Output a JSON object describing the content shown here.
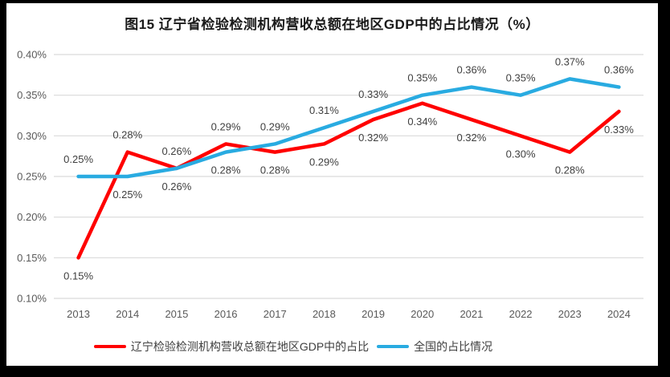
{
  "window": {
    "frame_color": "#000000",
    "canvas_color": "#FFFFFF"
  },
  "chart_data": {
    "type": "line",
    "title": "图15 辽宁省检验检测机构营收总额在地区GDP中的占比情况（%）",
    "categories": [
      "2013",
      "2014",
      "2015",
      "2016",
      "2017",
      "2018",
      "2019",
      "2020",
      "2021",
      "2022",
      "2023",
      "2024"
    ],
    "series": [
      {
        "name": "辽宁检验检测机构营收总额在地区GDP中的占比",
        "color": "#FF0000",
        "values": [
          0.15,
          0.28,
          0.26,
          0.29,
          0.28,
          0.29,
          0.32,
          0.34,
          0.32,
          0.3,
          0.28,
          0.33
        ]
      },
      {
        "name": "全国的占比情况",
        "color": "#29ABE1",
        "values": [
          0.25,
          0.25,
          0.26,
          0.28,
          0.29,
          0.31,
          0.33,
          0.35,
          0.36,
          0.35,
          0.37,
          0.36
        ]
      }
    ],
    "unit": "%",
    "ylim": [
      0.1,
      0.4
    ],
    "ytick_step": 0.05,
    "ytick_labels": [
      "0.40%",
      "0.35%",
      "0.30%",
      "0.25%",
      "0.20%",
      "0.15%",
      "0.10%"
    ],
    "xlabel": "",
    "ylabel": "",
    "grid": true,
    "data_labels": true,
    "legend_position": "bottom",
    "colors": {
      "grid": "#D9D9D9",
      "axis_text": "#595959",
      "data_label_text": "#404040",
      "title_text": "#1A1A1A"
    }
  }
}
